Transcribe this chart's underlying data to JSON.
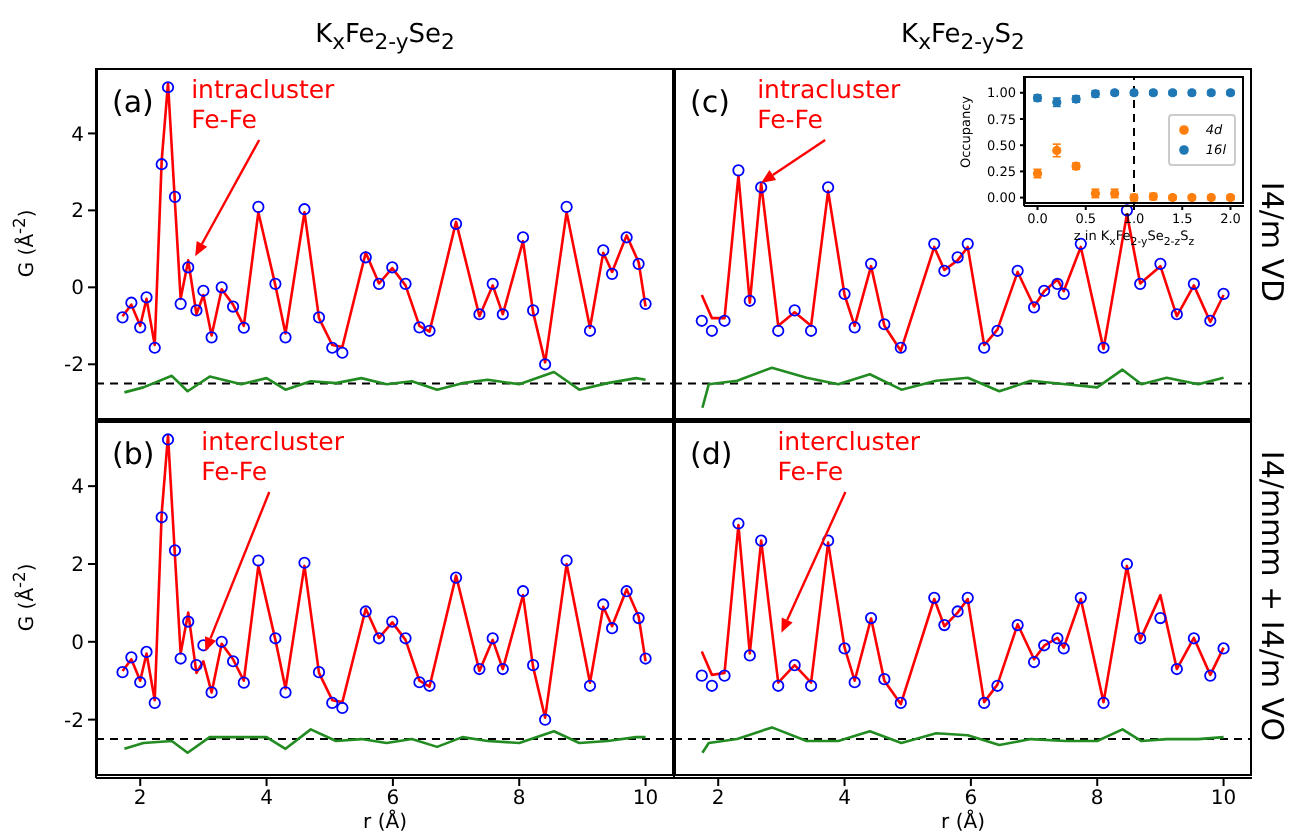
{
  "chart_data": [
    {
      "type": "scatter",
      "title": "K$_{x}$Fe$_{2-y}$Se$_{2}$",
      "ylabel": "G (Å$^{-2}$)",
      "xlim": [
        1.3,
        10.45
      ],
      "ylim": [
        -3.5,
        5.7
      ],
      "xticks": [
        2,
        4,
        6,
        8,
        10
      ],
      "yticks": [
        -2,
        0,
        2,
        4
      ],
      "tick_labels": "y",
      "annotations": [
        "(a)",
        {
          "text": "intracluster\nFe-Fe",
          "x": 2.87,
          "y": 0.78
        }
      ],
      "ref_lines": [
        {
          "axis": "y",
          "value": -2.5,
          "color": "#000000",
          "line_style": "dashed"
        }
      ],
      "series": [
        {
          "marker": "circle",
          "color": "#0000ff",
          "x": [
            1.72,
            1.86,
            2.0,
            2.1,
            2.23,
            2.34,
            2.44,
            2.55,
            2.64,
            2.76,
            2.89,
            3.0,
            3.13,
            3.29,
            3.47,
            3.64,
            3.87,
            4.14,
            4.3,
            4.6,
            4.83,
            5.04,
            5.2,
            5.57,
            5.78,
            5.99,
            6.2,
            6.42,
            6.58,
            7.0,
            7.37,
            7.58,
            7.74,
            8.06,
            8.22,
            8.41,
            8.75,
            9.12,
            9.33,
            9.47,
            9.7,
            9.89,
            10.0
          ],
          "values": [
            -0.78,
            -0.4,
            -1.04,
            -0.26,
            -1.57,
            3.2,
            5.2,
            2.35,
            -0.43,
            0.52,
            -0.6,
            -0.09,
            -1.3,
            0.0,
            -0.5,
            -1.05,
            2.09,
            0.09,
            -1.3,
            2.03,
            -0.78,
            -1.57,
            -1.7,
            0.78,
            0.09,
            0.52,
            0.09,
            -1.04,
            -1.13,
            1.65,
            -0.7,
            0.09,
            -0.7,
            1.3,
            -0.6,
            -2.0,
            2.09,
            -1.13,
            0.96,
            0.35,
            1.3,
            0.61,
            -0.43
          ]
        },
        {
          "type": "line",
          "color": "#ff0000",
          "x": [
            1.72,
            1.86,
            2.0,
            2.1,
            2.23,
            2.34,
            2.44,
            2.55,
            2.64,
            2.76,
            2.89,
            3.0,
            3.13,
            3.29,
            3.47,
            3.64,
            3.87,
            4.14,
            4.3,
            4.6,
            4.83,
            5.04,
            5.2,
            5.57,
            5.78,
            5.99,
            6.2,
            6.42,
            6.58,
            7.0,
            7.37,
            7.58,
            7.74,
            8.06,
            8.22,
            8.41,
            8.75,
            9.12,
            9.33,
            9.47,
            9.7,
            9.89,
            10.0
          ],
          "values": [
            -0.75,
            -0.45,
            -1.0,
            -0.3,
            -1.5,
            3.3,
            5.3,
            2.2,
            -0.3,
            0.7,
            -0.7,
            -0.2,
            -1.25,
            -0.05,
            -0.45,
            -1.0,
            1.95,
            0.05,
            -1.2,
            1.95,
            -0.8,
            -1.5,
            -1.55,
            0.9,
            0.1,
            0.5,
            0.05,
            -1.0,
            -1.15,
            1.7,
            -0.75,
            0.05,
            -0.7,
            1.2,
            -0.65,
            -1.95,
            1.95,
            -1.05,
            0.9,
            0.4,
            1.35,
            0.65,
            -0.5
          ]
        },
        {
          "type": "line",
          "color": "#228b22",
          "x": [
            1.75,
            2.05,
            2.5,
            2.75,
            3.1,
            3.6,
            4.0,
            4.3,
            4.7,
            5.1,
            5.5,
            5.9,
            6.3,
            6.7,
            7.1,
            7.5,
            8.0,
            8.55,
            8.95,
            9.4,
            9.85,
            10.0
          ],
          "values": [
            -2.73,
            -2.6,
            -2.3,
            -2.7,
            -2.32,
            -2.52,
            -2.36,
            -2.66,
            -2.44,
            -2.49,
            -2.36,
            -2.52,
            -2.44,
            -2.66,
            -2.49,
            -2.4,
            -2.52,
            -2.2,
            -2.66,
            -2.49,
            -2.36,
            -2.4
          ]
        }
      ]
    },
    {
      "type": "scatter",
      "ylabel": "G (Å$^{-2}$)",
      "xlabel": "r (Å)",
      "xlim": [
        1.3,
        10.45
      ],
      "ylim": [
        -3.5,
        5.7
      ],
      "xticks": [
        2,
        4,
        6,
        8,
        10
      ],
      "yticks": [
        -2,
        0,
        2,
        4
      ],
      "annotations": [
        "(b)",
        {
          "text": "intercluster\nFe-Fe",
          "x": 3.03,
          "y": -0.28
        }
      ],
      "ref_lines": [
        {
          "axis": "y",
          "value": -2.5,
          "color": "#000000",
          "line_style": "dashed"
        }
      ],
      "series": [
        {
          "marker": "circle",
          "color": "#0000ff",
          "x": [
            1.72,
            1.86,
            2.0,
            2.1,
            2.23,
            2.34,
            2.44,
            2.55,
            2.64,
            2.76,
            2.89,
            3.0,
            3.13,
            3.29,
            3.47,
            3.64,
            3.87,
            4.14,
            4.3,
            4.6,
            4.83,
            5.04,
            5.2,
            5.57,
            5.78,
            5.99,
            6.2,
            6.42,
            6.58,
            7.0,
            7.37,
            7.58,
            7.74,
            8.06,
            8.22,
            8.41,
            8.75,
            9.12,
            9.33,
            9.47,
            9.7,
            9.89,
            10.0
          ],
          "values": [
            -0.78,
            -0.4,
            -1.04,
            -0.26,
            -1.57,
            3.2,
            5.2,
            2.35,
            -0.43,
            0.52,
            -0.6,
            -0.09,
            -1.3,
            0.0,
            -0.5,
            -1.05,
            2.09,
            0.09,
            -1.3,
            2.03,
            -0.78,
            -1.57,
            -1.7,
            0.78,
            0.09,
            0.52,
            0.09,
            -1.04,
            -1.13,
            1.65,
            -0.7,
            0.09,
            -0.7,
            1.3,
            -0.6,
            -2.0,
            2.09,
            -1.13,
            0.96,
            0.35,
            1.3,
            0.61,
            -0.43
          ]
        },
        {
          "type": "line",
          "color": "#ff0000",
          "x": [
            1.72,
            1.86,
            2.0,
            2.1,
            2.23,
            2.34,
            2.44,
            2.55,
            2.64,
            2.76,
            2.89,
            3.0,
            3.13,
            3.29,
            3.47,
            3.64,
            3.87,
            4.14,
            4.3,
            4.6,
            4.83,
            5.04,
            5.2,
            5.57,
            5.78,
            5.99,
            6.2,
            6.42,
            6.58,
            7.0,
            7.37,
            7.58,
            7.74,
            8.06,
            8.22,
            8.41,
            8.75,
            9.12,
            9.33,
            9.47,
            9.7,
            9.89,
            10.0
          ],
          "values": [
            -0.75,
            -0.45,
            -1.0,
            -0.3,
            -1.5,
            3.3,
            5.3,
            2.2,
            -0.3,
            0.75,
            -0.8,
            -0.5,
            -1.3,
            -0.05,
            -0.45,
            -1.0,
            1.95,
            0.05,
            -1.2,
            1.95,
            -0.8,
            -1.5,
            -1.55,
            0.85,
            0.1,
            0.5,
            0.05,
            -1.0,
            -1.15,
            1.7,
            -0.75,
            0.05,
            -0.7,
            1.2,
            -0.65,
            -1.95,
            2.0,
            -1.05,
            0.9,
            0.4,
            1.35,
            0.65,
            -0.5
          ]
        },
        {
          "type": "line",
          "color": "#228b22",
          "x": [
            1.75,
            2.05,
            2.5,
            2.75,
            3.1,
            3.6,
            4.0,
            4.3,
            4.7,
            5.1,
            5.5,
            5.9,
            6.3,
            6.7,
            7.1,
            7.5,
            8.0,
            8.55,
            8.95,
            9.4,
            9.85,
            10.0
          ],
          "values": [
            -2.75,
            -2.6,
            -2.55,
            -2.85,
            -2.45,
            -2.45,
            -2.45,
            -2.75,
            -2.25,
            -2.55,
            -2.5,
            -2.6,
            -2.5,
            -2.7,
            -2.45,
            -2.55,
            -2.6,
            -2.3,
            -2.6,
            -2.55,
            -2.45,
            -2.45
          ]
        }
      ]
    },
    {
      "type": "scatter",
      "title": "K$_{x}$Fe$_{2-y}$S$_{2}$",
      "y2label": "I4/m VD",
      "xlim": [
        1.3,
        10.45
      ],
      "ylim": [
        -3.5,
        5.7
      ],
      "xticks": [
        2,
        4,
        6,
        8,
        10
      ],
      "yticks": [
        -2,
        0,
        2,
        4
      ],
      "tick_labels": false,
      "annotations": [
        "(c)",
        {
          "text": "intracluster\nFe-Fe",
          "x": 2.68,
          "y": 2.7
        }
      ],
      "ref_lines": [
        {
          "axis": "y",
          "value": -2.5,
          "color": "#000000",
          "line_style": "dashed"
        }
      ],
      "series": [
        {
          "marker": "circle",
          "color": "#0000ff",
          "x": [
            1.74,
            1.9,
            2.1,
            2.32,
            2.5,
            2.68,
            2.95,
            3.21,
            3.47,
            3.74,
            4.0,
            4.16,
            4.42,
            4.63,
            4.89,
            5.42,
            5.58,
            5.79,
            5.95,
            6.21,
            6.42,
            6.74,
            7.0,
            7.16,
            7.37,
            7.47,
            7.74,
            8.1,
            8.47,
            8.68,
            9.0,
            9.26,
            9.53,
            9.79,
            10.0
          ],
          "values": [
            -0.87,
            -1.13,
            -0.87,
            3.04,
            -0.35,
            2.6,
            -1.13,
            -0.6,
            -1.13,
            2.6,
            -0.17,
            -1.04,
            0.61,
            -0.96,
            -1.57,
            1.13,
            0.43,
            0.78,
            1.13,
            -1.57,
            -1.13,
            0.43,
            -0.52,
            -0.09,
            0.09,
            -0.17,
            1.13,
            -1.57,
            2.0,
            0.09,
            0.61,
            -0.7,
            0.09,
            -0.87,
            -0.17
          ]
        },
        {
          "type": "line",
          "color": "#ff0000",
          "x": [
            1.74,
            1.9,
            2.1,
            2.32,
            2.5,
            2.68,
            2.95,
            3.21,
            3.47,
            3.74,
            4.0,
            4.16,
            4.42,
            4.63,
            4.89,
            5.42,
            5.58,
            5.79,
            5.95,
            6.21,
            6.42,
            6.74,
            7.0,
            7.16,
            7.37,
            7.47,
            7.74,
            8.1,
            8.47,
            8.68,
            9.0,
            9.26,
            9.53,
            9.79,
            10.0
          ],
          "values": [
            -0.2,
            -0.8,
            -0.8,
            2.9,
            -0.4,
            2.7,
            -1.0,
            -0.65,
            -1.0,
            2.5,
            -0.2,
            -1.0,
            0.55,
            -1.0,
            -1.65,
            1.05,
            0.45,
            0.7,
            1.05,
            -1.5,
            -1.1,
            0.4,
            -0.5,
            -0.1,
            0.2,
            -0.1,
            1.05,
            -1.6,
            1.9,
            0.1,
            0.55,
            -0.75,
            0.05,
            -0.9,
            -0.2
          ]
        },
        {
          "type": "line",
          "color": "#228b22",
          "x": [
            1.75,
            1.85,
            2.3,
            2.85,
            3.4,
            3.9,
            4.4,
            4.9,
            5.45,
            5.95,
            6.45,
            6.95,
            7.5,
            8.0,
            8.4,
            8.7,
            9.1,
            9.6,
            10.0
          ],
          "values": [
            -3.13,
            -2.52,
            -2.43,
            -2.09,
            -2.35,
            -2.52,
            -2.26,
            -2.66,
            -2.43,
            -2.35,
            -2.7,
            -2.43,
            -2.52,
            -2.6,
            -2.14,
            -2.52,
            -2.35,
            -2.52,
            -2.35
          ]
        }
      ]
    },
    {
      "type": "scatter",
      "xlabel": "r (Å)",
      "y2label": "I4/mmm + I4/m VO",
      "xlim": [
        1.3,
        10.45
      ],
      "ylim": [
        -3.5,
        5.7
      ],
      "xticks": [
        2,
        4,
        6,
        8,
        10
      ],
      "yticks": [
        -2,
        0,
        2,
        4
      ],
      "tick_labels": "x",
      "annotations": [
        "(d)",
        {
          "text": "intercluster\nFe-Fe",
          "x": 3.0,
          "y": 0.2
        }
      ],
      "ref_lines": [
        {
          "axis": "y",
          "value": -2.5,
          "color": "#000000",
          "line_style": "dashed"
        }
      ],
      "series": [
        {
          "marker": "circle",
          "color": "#0000ff",
          "x": [
            1.74,
            1.9,
            2.1,
            2.32,
            2.5,
            2.68,
            2.95,
            3.21,
            3.47,
            3.74,
            4.0,
            4.16,
            4.42,
            4.63,
            4.89,
            5.42,
            5.58,
            5.79,
            5.95,
            6.21,
            6.42,
            6.74,
            7.0,
            7.16,
            7.37,
            7.47,
            7.74,
            8.1,
            8.47,
            8.68,
            9.0,
            9.26,
            9.53,
            9.79,
            10.0
          ],
          "values": [
            -0.87,
            -1.13,
            -0.87,
            3.04,
            -0.35,
            2.6,
            -1.13,
            -0.6,
            -1.13,
            2.6,
            -0.17,
            -1.04,
            0.61,
            -0.96,
            -1.57,
            1.13,
            0.43,
            0.78,
            1.13,
            -1.57,
            -1.13,
            0.43,
            -0.52,
            -0.09,
            0.09,
            -0.17,
            1.13,
            -1.57,
            2.0,
            0.09,
            0.61,
            -0.7,
            0.09,
            -0.87,
            -0.17
          ]
        },
        {
          "type": "line",
          "color": "#ff0000",
          "x": [
            1.74,
            1.9,
            2.1,
            2.32,
            2.5,
            2.68,
            2.95,
            3.21,
            3.47,
            3.74,
            4.0,
            4.16,
            4.42,
            4.63,
            4.89,
            5.42,
            5.58,
            5.79,
            5.95,
            6.21,
            6.42,
            6.74,
            7.0,
            7.16,
            7.37,
            7.47,
            7.74,
            8.1,
            8.47,
            8.68,
            9.0,
            9.26,
            9.53,
            9.79,
            10.0
          ],
          "values": [
            -0.25,
            -0.85,
            -0.8,
            3.0,
            -0.3,
            2.6,
            -1.05,
            -0.6,
            -1.05,
            2.55,
            -0.15,
            -1.0,
            0.6,
            -1.0,
            -1.6,
            1.1,
            0.4,
            0.75,
            1.1,
            -1.55,
            -1.1,
            0.45,
            -0.45,
            -0.1,
            0.1,
            -0.15,
            1.1,
            -1.55,
            1.95,
            0.05,
            1.2,
            -0.7,
            0.1,
            -0.85,
            -0.15
          ]
        },
        {
          "type": "line",
          "color": "#228b22",
          "x": [
            1.75,
            1.85,
            2.3,
            2.85,
            3.4,
            3.9,
            4.4,
            4.9,
            5.45,
            5.95,
            6.45,
            6.95,
            7.5,
            8.0,
            8.4,
            8.7,
            9.1,
            9.6,
            10.0
          ],
          "values": [
            -2.85,
            -2.6,
            -2.5,
            -2.2,
            -2.55,
            -2.55,
            -2.3,
            -2.6,
            -2.35,
            -2.4,
            -2.65,
            -2.5,
            -2.55,
            -2.55,
            -2.25,
            -2.55,
            -2.5,
            -2.5,
            -2.45
          ]
        }
      ]
    },
    {
      "type": "scatter",
      "xlabel": "z in K$_{x}$Fe$_{2-y}$Se$_{2-z}$S$_{z}$",
      "ylabel": "Occupancy",
      "xlim": [
        -0.14,
        2.14
      ],
      "ylim": [
        -0.08,
        1.16
      ],
      "xticks": [
        {
          "value": 0,
          "label": "0.0"
        },
        {
          "value": 0.5,
          "label": "0.5"
        },
        {
          "value": 1,
          "label": "1.0"
        },
        {
          "value": 1.5,
          "label": "1.5"
        },
        {
          "value": 2,
          "label": "2.0"
        }
      ],
      "yticks": [
        {
          "value": 0,
          "label": "0.00"
        },
        {
          "value": 0.25,
          "label": "0.25"
        },
        {
          "value": 0.5,
          "label": "0.50"
        },
        {
          "value": 0.75,
          "label": "0.75"
        },
        {
          "value": 1,
          "label": "1.00"
        }
      ],
      "legend": "center right",
      "marker": "circle",
      "ref_lines": [
        {
          "axis": "x",
          "value": 1,
          "color": "#000000",
          "line_style": "dashed"
        }
      ],
      "x": [
        0,
        0.2,
        0.4,
        0.6,
        0.8,
        1.0,
        1.2,
        1.4,
        1.6,
        1.8,
        2.0
      ],
      "series": [
        {
          "name": "4d",
          "color": "#ff7f0e",
          "values": [
            0.23,
            0.45,
            0.3,
            0.04,
            0.04,
            0.0,
            0.01,
            0.0,
            0.0,
            0.0,
            0.0
          ],
          "errors": [
            0.04,
            0.06,
            0.03,
            0.04,
            0.04,
            0.03,
            0.03,
            0.02,
            0.02,
            0.02,
            0.02
          ]
        },
        {
          "name": "16l",
          "color": "#1f77b4",
          "values": [
            0.95,
            0.91,
            0.94,
            0.99,
            1.0,
            1.0,
            1.0,
            1.0,
            1.0,
            1.0,
            1.0
          ],
          "errors": [
            0.03,
            0.04,
            0.03,
            0.03,
            0.02,
            0.02,
            0.02,
            0.02,
            0.02,
            0.02,
            0.02
          ]
        }
      ]
    }
  ]
}
